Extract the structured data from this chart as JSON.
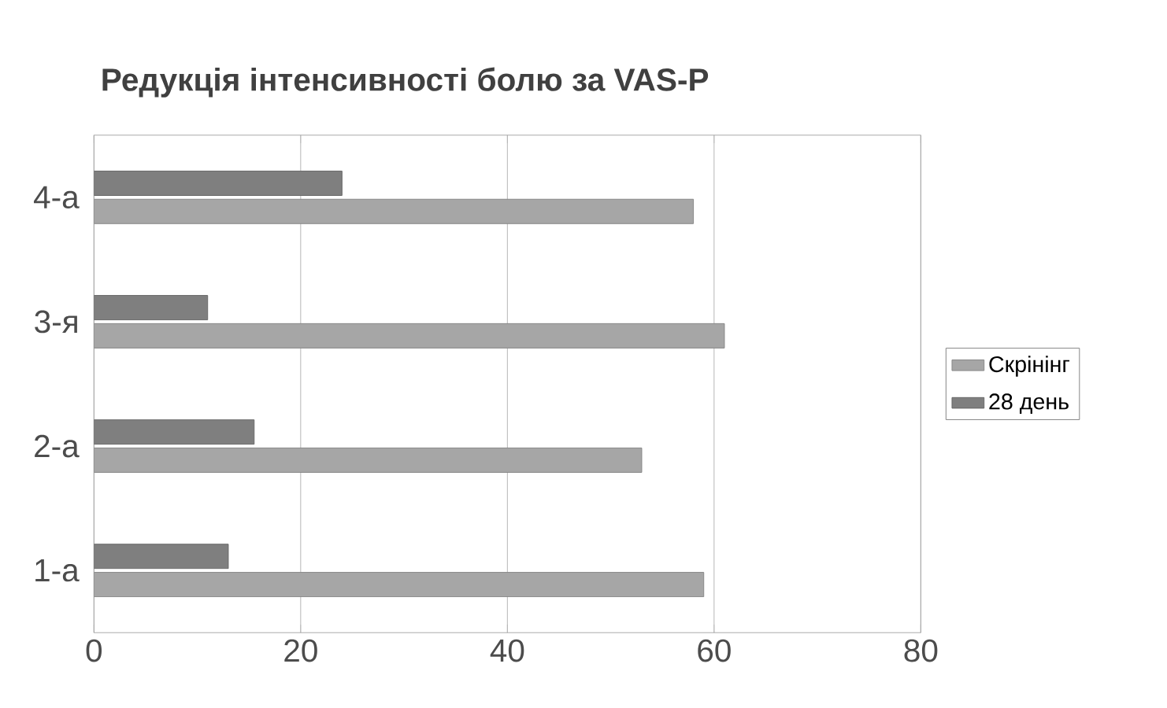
{
  "chart_data": {
    "type": "bar",
    "orientation": "horizontal",
    "title": "Редукція інтенсивності болю за VAS-P",
    "categories": [
      "4-а",
      "3-я",
      "2-а",
      "1-а"
    ],
    "series": [
      {
        "name": "Скрінінг",
        "color": "#a6a6a6",
        "values": [
          58,
          61,
          53,
          59
        ]
      },
      {
        "name": "28 день",
        "color": "#7f7f7f",
        "values": [
          24,
          11,
          15.5,
          13
        ]
      }
    ],
    "xlim": [
      0,
      80
    ],
    "xticks": [
      0,
      20,
      40,
      60,
      80
    ],
    "grid": "x",
    "legend": "right"
  }
}
